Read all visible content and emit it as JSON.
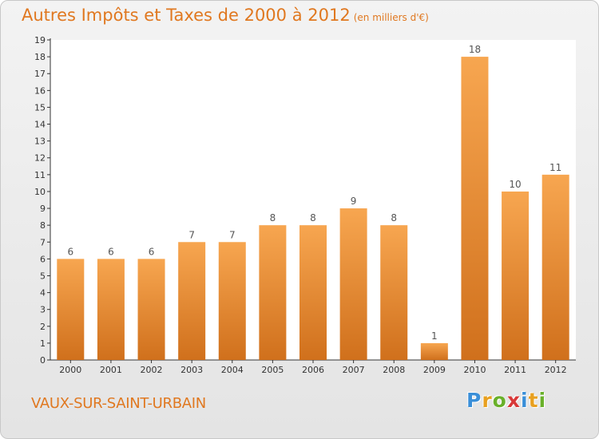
{
  "chart_data": {
    "type": "bar",
    "title": "Autres Impôts et Taxes de 2000 à 2012",
    "subtitle": "(en milliers d'€)",
    "categories": [
      "2000",
      "2001",
      "2002",
      "2003",
      "2004",
      "2005",
      "2006",
      "2007",
      "2008",
      "2009",
      "2010",
      "2011",
      "2012"
    ],
    "values": [
      6,
      6,
      6,
      7,
      7,
      8,
      8,
      9,
      8,
      1,
      18,
      10,
      11
    ],
    "ylim": [
      0,
      19
    ],
    "yticks": [
      0,
      1,
      2,
      3,
      4,
      5,
      6,
      7,
      8,
      9,
      10,
      11,
      12,
      13,
      14,
      15,
      16,
      17,
      18,
      19
    ],
    "grid": false,
    "bar_color_top": "#f7a650",
    "bar_color_bottom": "#d0701c"
  },
  "footer": {
    "commune": "VAUX-SUR-SAINT-URBAIN",
    "logo_letters": [
      "P",
      "r",
      "o",
      "x",
      "i",
      "t",
      "i"
    ]
  }
}
